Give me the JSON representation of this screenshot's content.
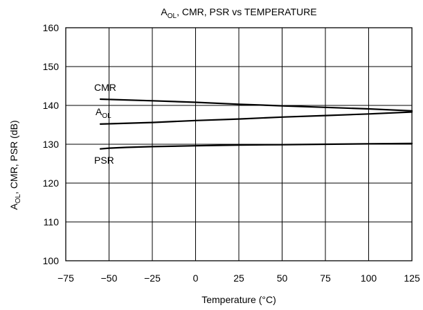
{
  "chart_data": {
    "type": "line",
    "title": {
      "main": "A",
      "sub": "OL",
      "rest": ", CMR, PSR vs TEMPERATURE"
    },
    "xlabel": "Temperature (°C)",
    "ylabel": {
      "main": "A",
      "sub": "OL",
      "rest": ", CMR, PSR (dB)"
    },
    "xlim": [
      -75,
      125
    ],
    "ylim": [
      100,
      160
    ],
    "xticks": [
      "−75",
      "−50",
      "−25",
      "0",
      "25",
      "50",
      "75",
      "100",
      "125"
    ],
    "yticks": [
      "100",
      "110",
      "120",
      "130",
      "140",
      "150",
      "160"
    ],
    "grid": true,
    "series": [
      {
        "name": "CMR",
        "label": {
          "main": "CMR",
          "sub": ""
        },
        "x": [
          -55,
          -25,
          0,
          25,
          50,
          75,
          100,
          125
        ],
        "y": [
          141.6,
          141.2,
          140.8,
          140.3,
          139.9,
          139.5,
          139.1,
          138.6
        ]
      },
      {
        "name": "AOL",
        "label": {
          "main": "A",
          "sub": "OL"
        },
        "x": [
          -55,
          -25,
          0,
          25,
          50,
          75,
          100,
          125
        ],
        "y": [
          135.2,
          135.6,
          136.1,
          136.5,
          137.0,
          137.4,
          137.8,
          138.3
        ]
      },
      {
        "name": "PSR",
        "label": {
          "main": "PSR",
          "sub": ""
        },
        "x": [
          -55,
          -50,
          -40,
          -25,
          0,
          25,
          50,
          75,
          100,
          125
        ],
        "y": [
          128.8,
          129.0,
          129.2,
          129.4,
          129.6,
          129.8,
          129.9,
          130.0,
          130.1,
          130.2
        ]
      }
    ]
  }
}
